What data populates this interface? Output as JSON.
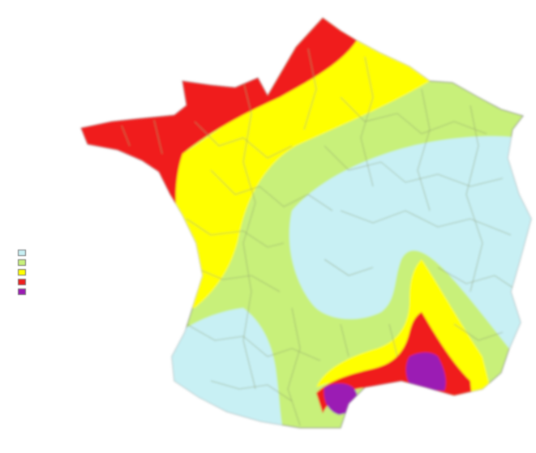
{
  "map": {
    "zones": [
      {
        "id": "zone-white",
        "color": "#c8f0f4"
      },
      {
        "id": "zone-light-green",
        "color": "#c8f07a"
      },
      {
        "id": "zone-yellow",
        "color": "#ffff00"
      },
      {
        "id": "zone-red",
        "color": "#f01e1e"
      },
      {
        "id": "zone-purple",
        "color": "#9b1ab4"
      }
    ]
  },
  "legend": {
    "title": "",
    "subtitle": "",
    "items": [
      {
        "label": "",
        "color": "#c8f0f4"
      },
      {
        "label": "",
        "color": "#c8f07a"
      },
      {
        "label": "",
        "color": "#ffff00"
      },
      {
        "label": "",
        "color": "#f01e1e"
      },
      {
        "label": "",
        "color": "#9b1ab4"
      }
    ]
  }
}
